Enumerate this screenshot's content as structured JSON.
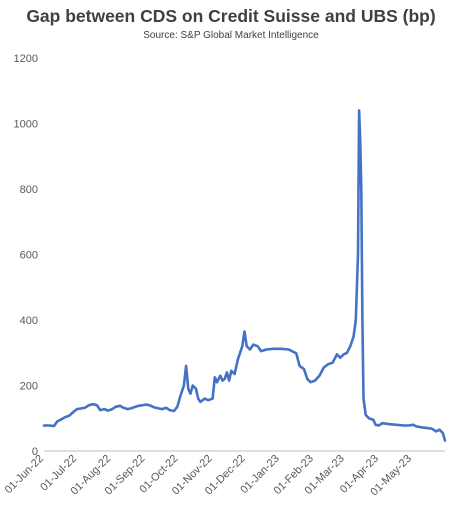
{
  "chart_data": {
    "type": "line",
    "title": "Gap between CDS on Credit Suisse and UBS (bp)",
    "subtitle": "Source: S&P Global Market Intelligence",
    "ylim": [
      0,
      1200
    ],
    "yticks": [
      0,
      200,
      400,
      600,
      800,
      1000,
      1200
    ],
    "xlim": [
      "2022-06-01",
      "2023-05-31"
    ],
    "xticks": [
      "01-Jun-22",
      "01-Jul-22",
      "01-Aug-22",
      "01-Sep-22",
      "01-Oct-22",
      "01-Nov-22",
      "01-Dec-22",
      "01-Jan-23",
      "01-Feb-23",
      "01-Mar-23",
      "01-Apr-23",
      "01-May-23"
    ],
    "grid": false,
    "line_color": "#4472C4",
    "series": [
      {
        "points": [
          [
            "2022-06-01",
            78
          ],
          [
            "2022-06-06",
            78
          ],
          [
            "2022-06-10",
            76
          ],
          [
            "2022-06-13",
            90
          ],
          [
            "2022-06-17",
            97
          ],
          [
            "2022-06-20",
            103
          ],
          [
            "2022-06-24",
            108
          ],
          [
            "2022-06-28",
            120
          ],
          [
            "2022-07-01",
            128
          ],
          [
            "2022-07-05",
            130
          ],
          [
            "2022-07-08",
            132
          ],
          [
            "2022-07-12",
            140
          ],
          [
            "2022-07-15",
            143
          ],
          [
            "2022-07-19",
            140
          ],
          [
            "2022-07-22",
            125
          ],
          [
            "2022-07-26",
            128
          ],
          [
            "2022-07-29",
            123
          ],
          [
            "2022-08-02",
            128
          ],
          [
            "2022-08-05",
            135
          ],
          [
            "2022-08-09",
            138
          ],
          [
            "2022-08-12",
            132
          ],
          [
            "2022-08-16",
            128
          ],
          [
            "2022-08-19",
            130
          ],
          [
            "2022-08-23",
            135
          ],
          [
            "2022-08-26",
            138
          ],
          [
            "2022-08-30",
            140
          ],
          [
            "2022-09-02",
            142
          ],
          [
            "2022-09-06",
            138
          ],
          [
            "2022-09-09",
            133
          ],
          [
            "2022-09-13",
            130
          ],
          [
            "2022-09-16",
            128
          ],
          [
            "2022-09-20",
            132
          ],
          [
            "2022-09-23",
            125
          ],
          [
            "2022-09-27",
            122
          ],
          [
            "2022-09-30",
            135
          ],
          [
            "2022-10-03",
            170
          ],
          [
            "2022-10-06",
            200
          ],
          [
            "2022-10-08",
            260
          ],
          [
            "2022-10-10",
            190
          ],
          [
            "2022-10-12",
            175
          ],
          [
            "2022-10-14",
            200
          ],
          [
            "2022-10-17",
            190
          ],
          [
            "2022-10-19",
            160
          ],
          [
            "2022-10-21",
            150
          ],
          [
            "2022-10-25",
            160
          ],
          [
            "2022-10-28",
            155
          ],
          [
            "2022-11-01",
            160
          ],
          [
            "2022-11-03",
            225
          ],
          [
            "2022-11-05",
            210
          ],
          [
            "2022-11-08",
            230
          ],
          [
            "2022-11-10",
            215
          ],
          [
            "2022-11-12",
            220
          ],
          [
            "2022-11-14",
            240
          ],
          [
            "2022-11-16",
            215
          ],
          [
            "2022-11-18",
            245
          ],
          [
            "2022-11-21",
            235
          ],
          [
            "2022-11-24",
            280
          ],
          [
            "2022-11-28",
            320
          ],
          [
            "2022-11-30",
            365
          ],
          [
            "2022-12-02",
            320
          ],
          [
            "2022-12-05",
            310
          ],
          [
            "2022-12-08",
            325
          ],
          [
            "2022-12-12",
            320
          ],
          [
            "2022-12-15",
            305
          ],
          [
            "2022-12-20",
            310
          ],
          [
            "2022-12-26",
            312
          ],
          [
            "2023-01-02",
            312
          ],
          [
            "2023-01-09",
            310
          ],
          [
            "2023-01-12",
            305
          ],
          [
            "2023-01-16",
            298
          ],
          [
            "2023-01-19",
            260
          ],
          [
            "2023-01-23",
            250
          ],
          [
            "2023-01-26",
            220
          ],
          [
            "2023-01-29",
            210
          ],
          [
            "2023-02-02",
            215
          ],
          [
            "2023-02-06",
            230
          ],
          [
            "2023-02-10",
            255
          ],
          [
            "2023-02-14",
            265
          ],
          [
            "2023-02-18",
            270
          ],
          [
            "2023-02-22",
            295
          ],
          [
            "2023-02-25",
            285
          ],
          [
            "2023-02-28",
            295
          ],
          [
            "2023-03-03",
            300
          ],
          [
            "2023-03-06",
            320
          ],
          [
            "2023-03-09",
            350
          ],
          [
            "2023-03-11",
            400
          ],
          [
            "2023-03-13",
            600
          ],
          [
            "2023-03-14",
            1040
          ],
          [
            "2023-03-15",
            950
          ],
          [
            "2023-03-16",
            800
          ],
          [
            "2023-03-17",
            400
          ],
          [
            "2023-03-18",
            160
          ],
          [
            "2023-03-20",
            110
          ],
          [
            "2023-03-23",
            100
          ],
          [
            "2023-03-27",
            95
          ],
          [
            "2023-03-29",
            80
          ],
          [
            "2023-04-01",
            78
          ],
          [
            "2023-04-04",
            85
          ],
          [
            "2023-04-10",
            82
          ],
          [
            "2023-04-17",
            80
          ],
          [
            "2023-04-24",
            78
          ],
          [
            "2023-04-28",
            78
          ],
          [
            "2023-05-02",
            80
          ],
          [
            "2023-05-05",
            75
          ],
          [
            "2023-05-10",
            72
          ],
          [
            "2023-05-15",
            70
          ],
          [
            "2023-05-19",
            68
          ],
          [
            "2023-05-23",
            60
          ],
          [
            "2023-05-26",
            65
          ],
          [
            "2023-05-29",
            55
          ],
          [
            "2023-05-31",
            32
          ]
        ]
      }
    ]
  }
}
